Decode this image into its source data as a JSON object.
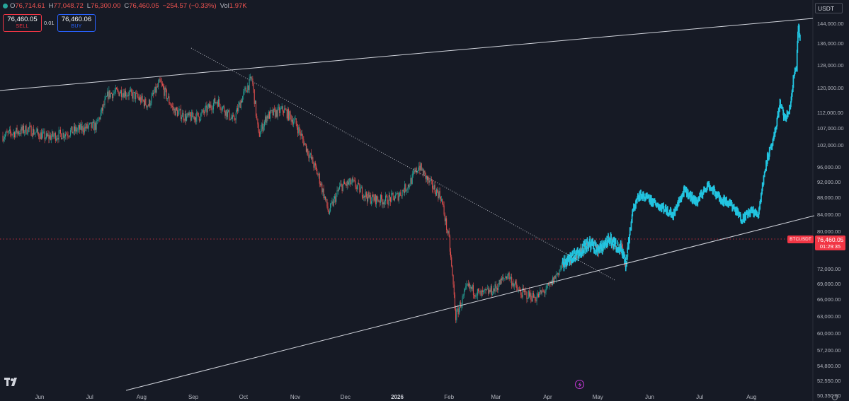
{
  "ohlc": {
    "open_key": "O",
    "open": "76,714.61",
    "high_key": "H",
    "high": "77,048.72",
    "low_key": "L",
    "low": "76,300.00",
    "close_key": "C",
    "close": "76,460.05",
    "change": "−254.57 (−0.33%)",
    "vol_key": "Vol",
    "vol": "1.97K"
  },
  "trade": {
    "sell_price": "76,460.05",
    "sell_label": "SELL",
    "spread": "0.01",
    "buy_price": "76,460.06",
    "buy_label": "BUY"
  },
  "currency": "USDT",
  "price_axis": [
    "144,000.00",
    "136,000.00",
    "128,000.00",
    "120,000.00",
    "112,000.00",
    "107,000.00",
    "102,000.00",
    "96,000.00",
    "92,000.00",
    "88,000.00",
    "84,000.00",
    "80,000.00",
    "72,000.00",
    "69,000.00",
    "66,000.00",
    "63,000.00",
    "60,000.00",
    "57,200.00",
    "54,800.00",
    "52,550.00",
    "50,350.00"
  ],
  "time_axis": [
    "Jun",
    "Jul",
    "Aug",
    "Sep",
    "Oct",
    "Nov",
    "Dec",
    "2026",
    "Feb",
    "Mar",
    "Apr",
    "May",
    "Jun",
    "Jul",
    "Aug"
  ],
  "last_price": {
    "symbol": "BTCUSDT",
    "price": "76,460.05",
    "countdown": "01:29:35"
  },
  "colors": {
    "up": "#26a69a",
    "down": "#ef5350",
    "projection": "#22c4e0",
    "background": "#161a25",
    "price_tag": "#f23645",
    "trendline": "#d1d4dc"
  },
  "icons": {
    "logo": "tradingview-logo-icon",
    "lightning": "lightning-icon",
    "settings": "gear-icon"
  },
  "chart_data": {
    "type": "line",
    "scale": "log",
    "ylim": [
      50350,
      148000
    ],
    "x_range": [
      "2025-05-10",
      "2026-09-05"
    ],
    "series": [
      {
        "x": [
          "2025-05-10",
          "2025-05-25",
          "2025-06-05",
          "2025-06-15",
          "2025-06-25",
          "2025-07-05",
          "2025-07-12",
          "2025-07-20",
          "2025-07-28",
          "2025-08-05",
          "2025-08-12",
          "2025-08-20",
          "2025-08-28",
          "2025-09-05",
          "2025-09-15",
          "2025-09-25",
          "2025-10-01",
          "2025-10-06",
          "2025-10-10",
          "2025-10-15",
          "2025-10-25",
          "2025-11-01",
          "2025-11-08",
          "2025-11-15",
          "2025-11-21",
          "2025-11-28",
          "2025-12-05",
          "2025-12-15",
          "2025-12-25",
          "2026-01-01",
          "2026-01-08",
          "2026-01-14",
          "2026-01-20",
          "2026-01-27",
          "2026-02-01",
          "2026-02-05",
          "2026-02-12",
          "2026-02-20",
          "2026-02-28",
          "2026-03-08",
          "2026-03-15",
          "2026-03-25",
          "2026-04-02",
          "2026-04-10",
          "2026-04-18",
          "2026-04-26",
          "2026-05-02",
          "2026-05-08",
          "2026-05-12",
          "2026-05-15",
          "2026-05-18",
          "2026-05-19"
        ],
        "values": [
          105000,
          107000,
          104500,
          105500,
          107000,
          108000,
          118000,
          119000,
          117500,
          114500,
          122000,
          113000,
          110500,
          111000,
          116000,
          109500,
          118000,
          123500,
          105000,
          111000,
          113000,
          109000,
          101000,
          93500,
          84500,
          91000,
          92000,
          88000,
          87500,
          88500,
          91500,
          96500,
          92000,
          88500,
          78000,
          63000,
          68500,
          67000,
          68000,
          71000,
          67500,
          66500,
          68500,
          73000,
          75000,
          77500,
          76000,
          78500,
          77000,
          76500,
          72500,
          76460
        ]
      },
      {
        "x": [
          "2026-05-19",
          "2026-05-22",
          "2026-05-26",
          "2026-06-01",
          "2026-06-08",
          "2026-06-15",
          "2026-06-22",
          "2026-06-29",
          "2026-07-06",
          "2026-07-13",
          "2026-07-20",
          "2026-07-26",
          "2026-08-01",
          "2026-08-05",
          "2026-08-10",
          "2026-08-14",
          "2026-08-18",
          "2026-08-21",
          "2026-08-24",
          "2026-08-26",
          "2026-08-28",
          "2026-08-29",
          "2026-08-30"
        ],
        "values": [
          76460,
          85000,
          89000,
          87500,
          86000,
          84000,
          90000,
          87000,
          91500,
          88000,
          86500,
          83000,
          85000,
          84000,
          98000,
          103000,
          115000,
          110000,
          113000,
          123000,
          128000,
          143000,
          138000
        ]
      }
    ]
  }
}
